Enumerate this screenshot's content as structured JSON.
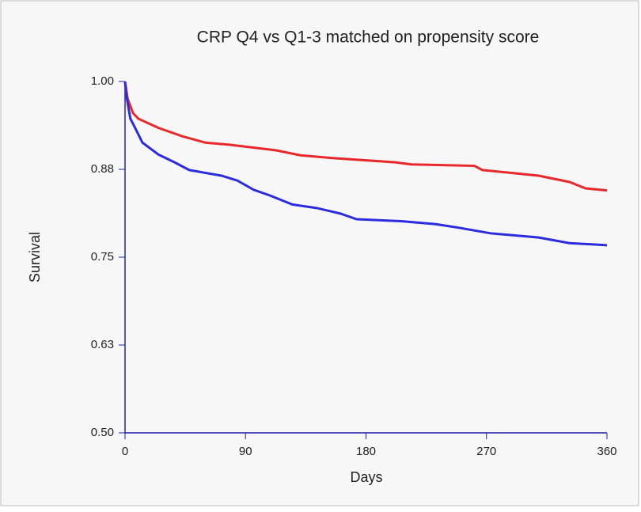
{
  "chart_data": {
    "type": "line",
    "title": "CRP Q4 vs Q1-3 matched on propensity score",
    "xlabel": "Days",
    "ylabel": "Survival",
    "xlim": [
      0,
      360
    ],
    "xticks": [
      0,
      90,
      180,
      270,
      360
    ],
    "ylim": [
      0.5,
      1.0
    ],
    "yticks": [
      {
        "value": 0.5,
        "label": "0.50"
      },
      {
        "value": 0.625,
        "label": "0.63"
      },
      0.75,
      {
        "value": 0.875,
        "label": "0.88"
      },
      {
        "value": 1.0,
        "label": "1.00"
      }
    ],
    "series": [
      {
        "color": "#e8282b",
        "x": [
          0,
          2,
          6,
          10,
          25,
          43,
          60,
          78,
          113,
          131,
          155,
          202,
          214,
          261,
          267,
          309,
          332,
          344,
          360
        ],
        "values": [
          1.0,
          0.975,
          0.955,
          0.947,
          0.934,
          0.922,
          0.913,
          0.91,
          0.902,
          0.895,
          0.891,
          0.885,
          0.882,
          0.88,
          0.874,
          0.866,
          0.857,
          0.848,
          0.845
        ]
      },
      {
        "color": "#2b2be0",
        "x": [
          0,
          1,
          4,
          7,
          13,
          25,
          37,
          48,
          72,
          84,
          96,
          108,
          125,
          143,
          161,
          173,
          208,
          232,
          249,
          273,
          309,
          332,
          360
        ],
        "values": [
          1.0,
          0.98,
          0.947,
          0.936,
          0.913,
          0.896,
          0.885,
          0.874,
          0.866,
          0.859,
          0.846,
          0.838,
          0.825,
          0.82,
          0.812,
          0.804,
          0.801,
          0.797,
          0.792,
          0.784,
          0.778,
          0.77,
          0.767
        ]
      }
    ]
  }
}
